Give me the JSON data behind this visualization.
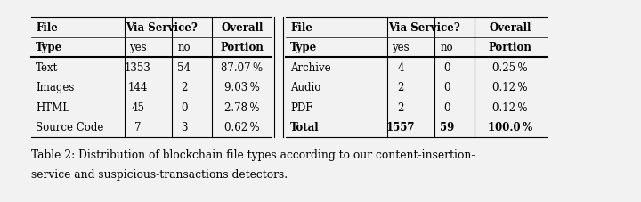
{
  "bg_color": "#f2f2f2",
  "caption_line1": "Table 2: Distribution of blockchain file types according to our content-insertion-",
  "caption_line2": "service and suspicious-transactions detectors.",
  "left_rows": [
    [
      "File",
      "",
      "",
      "Overall"
    ],
    [
      "Type",
      "yes",
      "no",
      "Portion"
    ],
    [
      "Text",
      "1353",
      "54",
      "87.07 %"
    ],
    [
      "Images",
      "144",
      "2",
      "9.03 %"
    ],
    [
      "HTML",
      "45",
      "0",
      "2.78 %"
    ],
    [
      "Source Code",
      "7",
      "3",
      "0.62 %"
    ]
  ],
  "right_rows": [
    [
      "File",
      "",
      "",
      "Overall"
    ],
    [
      "Type",
      "yes",
      "no",
      "Portion"
    ],
    [
      "Archive",
      "4",
      "0",
      "0.25 %"
    ],
    [
      "Audio",
      "2",
      "0",
      "0.12 %"
    ],
    [
      "PDF",
      "2",
      "0",
      "0.12 %"
    ],
    [
      "Total",
      "1557",
      "59",
      "100.0 %"
    ]
  ],
  "left_via_service_header": "Via Service?",
  "right_via_service_header": "Via Service?",
  "row_bold": [
    false,
    false,
    false,
    false,
    false,
    true
  ],
  "header_bold": [
    true,
    true,
    false,
    false,
    false,
    false
  ]
}
